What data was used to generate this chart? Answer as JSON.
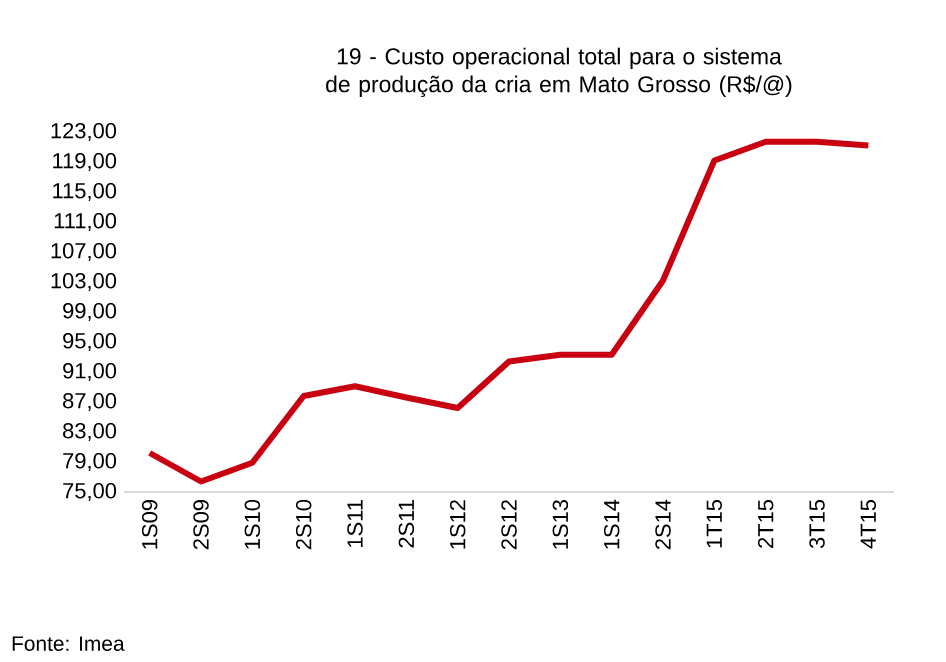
{
  "chart_data": {
    "type": "line",
    "title": "19 - Custo operacional total para o sistema de produção da cria em Mato Grosso (R$/@)",
    "categories": [
      "1S09",
      "2S09",
      "1S10",
      "2S10",
      "1S11",
      "2S11",
      "1S12",
      "2S12",
      "1S13",
      "1S14",
      "2S14",
      "1T15",
      "2T15",
      "3T15",
      "4T15"
    ],
    "series": [
      {
        "color": "#c8000f",
        "values": [
          80.2,
          76.4,
          78.9,
          87.8,
          89.1,
          87.6,
          86.2,
          92.4,
          93.3,
          93.3,
          103.2,
          119.2,
          121.7,
          121.7,
          121.2
        ]
      }
    ],
    "ylim": [
      75,
      123
    ],
    "yticks": [
      {
        "value": 75,
        "label": "75,00"
      },
      {
        "value": 79,
        "label": "79,00"
      },
      {
        "value": 83,
        "label": "83,00"
      },
      {
        "value": 87,
        "label": "87,00"
      },
      {
        "value": 91,
        "label": "91,00"
      },
      {
        "value": 95,
        "label": "95,00"
      },
      {
        "value": 99,
        "label": "99,00"
      },
      {
        "value": 103,
        "label": "103,00"
      },
      {
        "value": 107,
        "label": "107,00"
      },
      {
        "value": 111,
        "label": "111,00"
      },
      {
        "value": 115,
        "label": "115,00"
      },
      {
        "value": 119,
        "label": "119,00"
      },
      {
        "value": 123,
        "label": "123,00"
      }
    ],
    "grid": false,
    "marker": "none",
    "line_style": "solid",
    "annotations": [
      "Fonte: Imea"
    ]
  }
}
